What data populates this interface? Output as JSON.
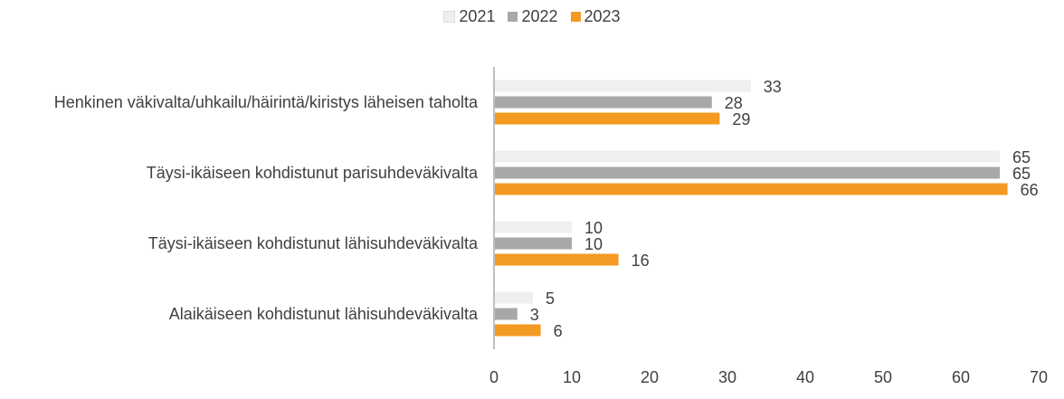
{
  "chart_data": {
    "type": "bar",
    "orientation": "horizontal",
    "categories": [
      "Henkinen väkivalta/uhkailu/häirintä/kiristys läheisen taholta",
      "Täysi-ikäiseen kohdistunut parisuhdeväkivalta",
      "Täysi-ikäiseen kohdistunut lähisuhdeväkivalta",
      "Alaikäiseen kohdistunut lähisuhdeväkivalta"
    ],
    "series": [
      {
        "name": "2021",
        "color": "#efefef",
        "values": [
          33,
          65,
          10,
          5
        ]
      },
      {
        "name": "2022",
        "color": "#a8a8a8",
        "values": [
          28,
          65,
          10,
          3
        ]
      },
      {
        "name": "2023",
        "color": "#f39a22",
        "values": [
          29,
          66,
          16,
          6
        ]
      }
    ],
    "xlim": [
      0,
      70
    ],
    "xticks": [
      0,
      10,
      20,
      30,
      40,
      50,
      60,
      70
    ],
    "grid": false,
    "legend": "top"
  }
}
